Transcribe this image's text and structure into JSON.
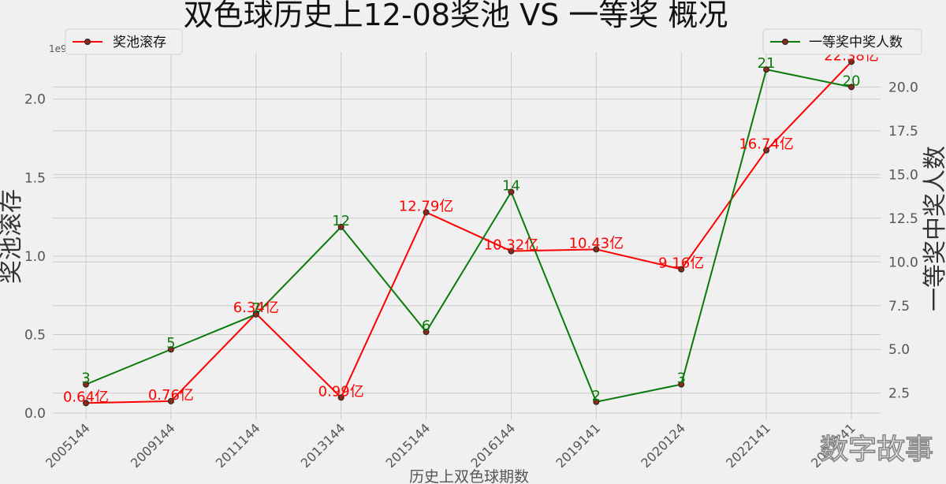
{
  "chart_data": {
    "type": "line",
    "title": "双色球历史上12-08奖池 VS 一等奖 概况",
    "xlabel": "历史上双色球期数",
    "categories": [
      "2005144",
      "2009144",
      "2011144",
      "2013144",
      "2015144",
      "2016144",
      "2019141",
      "2020124",
      "2022141",
      "2023141"
    ],
    "left_axis": {
      "ylabel": "奖池滚存",
      "ylim": [
        -0.04,
        2.3
      ],
      "ticks": [
        0.0,
        0.5,
        1.0,
        1.5,
        2.0
      ],
      "tick_labels": [
        "0.0",
        "0.5",
        "1.0",
        "1.5",
        "2.0"
      ],
      "exponent_label": "1e9"
    },
    "right_axis": {
      "ylabel": "一等奖中奖人数",
      "ylim": [
        1.0,
        22.0
      ],
      "ticks": [
        2.5,
        5.0,
        7.5,
        10.0,
        12.5,
        15.0,
        17.5,
        20.0
      ],
      "tick_labels": [
        "2.5",
        "5.0",
        "7.5",
        "10.0",
        "12.5",
        "15.0",
        "17.5",
        "20.0"
      ]
    },
    "series": [
      {
        "name": "奖池滚存",
        "axis": "left",
        "color": "#ff0000",
        "values": [
          0.064,
          0.076,
          0.634,
          0.099,
          1.279,
          1.032,
          1.043,
          0.916,
          1.674,
          2.238
        ],
        "labels": [
          "0.64亿",
          "0.76亿",
          "6.34亿",
          "0.99亿",
          "12.79亿",
          "10.32亿",
          "10.43亿",
          "9.16亿",
          "16.74亿",
          "22.38亿"
        ]
      },
      {
        "name": "一等奖中奖人数",
        "axis": "right",
        "color": "#0a7a0a",
        "values": [
          3,
          5,
          7,
          12,
          6,
          14,
          2,
          3,
          21,
          20
        ],
        "labels": [
          "3",
          "5",
          "7",
          "12",
          "6",
          "14",
          "2",
          "3",
          "21",
          "20"
        ]
      }
    ],
    "legend": {
      "left_position": "top-left",
      "right_position": "top-right"
    },
    "grid": true
  },
  "watermark": "数字故事"
}
